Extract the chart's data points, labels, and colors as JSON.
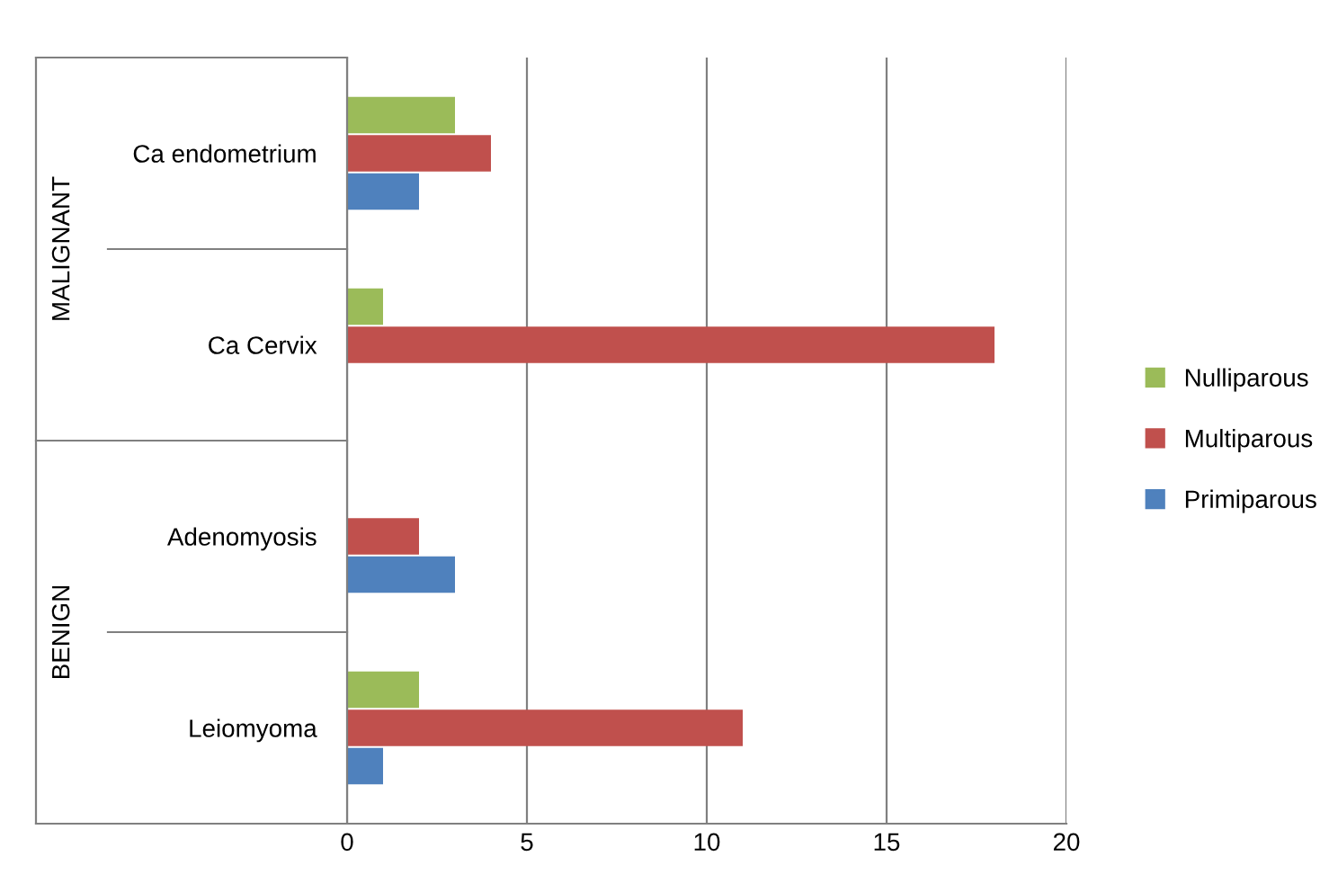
{
  "chart_data": {
    "type": "bar",
    "orientation": "horizontal",
    "categories": [
      "Ca endometrium",
      "Ca Cervix",
      "Adenomyosis",
      "Leiomyoma"
    ],
    "series": [
      {
        "name": "Nulliparous",
        "color": "#9bbb59",
        "values": [
          3,
          1,
          0,
          2
        ]
      },
      {
        "name": "Multiparous",
        "color": "#c0504d",
        "values": [
          4,
          18,
          2,
          11
        ]
      },
      {
        "name": "Primiparous",
        "color": "#4f81bd",
        "values": [
          2,
          0,
          3,
          1
        ]
      }
    ],
    "xlim": [
      0,
      20
    ],
    "xticks": [
      0,
      5,
      10,
      15,
      20
    ],
    "grid": "x",
    "legend": "right",
    "annotations": [
      "MALIGNANT",
      "BENIGN"
    ]
  }
}
